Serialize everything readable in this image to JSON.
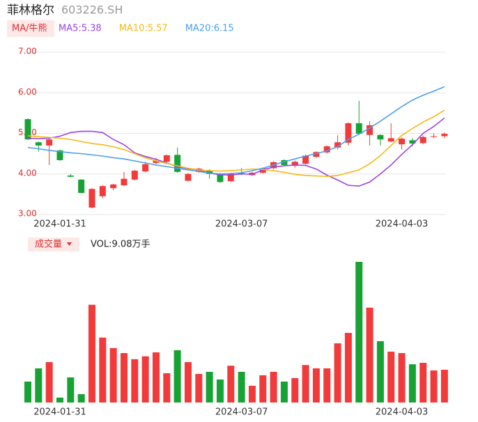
{
  "chart_data": [
    {
      "type": "candlestick",
      "title": "菲林格尔",
      "subtitle": "603226.SH",
      "mode_button": "MA/牛熊",
      "categories": [
        null,
        null,
        null,
        "2024-01-31",
        null,
        null,
        null,
        null,
        null,
        null,
        null,
        null,
        null,
        null,
        null,
        null,
        null,
        null,
        null,
        null,
        "2024-03-07",
        null,
        null,
        null,
        null,
        null,
        null,
        null,
        null,
        null,
        null,
        null,
        null,
        null,
        null,
        "2024-04-03",
        null,
        null,
        null,
        null
      ],
      "open": [
        5.35,
        4.78,
        4.7,
        4.58,
        3.96,
        3.86,
        3.17,
        3.45,
        3.65,
        3.72,
        3.86,
        4.06,
        4.27,
        4.3,
        4.47,
        3.83,
        4.05,
        4.08,
        3.99,
        3.82,
        4.02,
        3.97,
        4.03,
        4.14,
        4.34,
        4.2,
        4.25,
        4.42,
        4.53,
        4.65,
        4.77,
        5.25,
        4.96,
        4.96,
        4.8,
        4.73,
        4.83,
        4.76,
        4.92,
        4.93
      ],
      "high": [
        5.37,
        4.8,
        4.9,
        4.6,
        4.0,
        3.87,
        3.65,
        3.72,
        3.76,
        4.05,
        4.1,
        4.3,
        4.4,
        4.48,
        4.65,
        4.02,
        4.15,
        4.12,
        4.02,
        4.03,
        4.15,
        4.05,
        4.16,
        4.31,
        4.36,
        4.33,
        4.48,
        4.56,
        4.7,
        4.95,
        5.27,
        5.8,
        5.3,
        4.98,
        5.25,
        4.9,
        4.88,
        4.95,
        5.0,
        5.02
      ],
      "low": [
        4.84,
        4.55,
        4.22,
        4.32,
        3.92,
        3.52,
        3.15,
        3.4,
        3.6,
        3.7,
        3.84,
        4.04,
        4.24,
        4.28,
        4.03,
        3.82,
        4.03,
        3.88,
        3.78,
        3.8,
        3.97,
        3.95,
        4.01,
        4.12,
        4.2,
        4.15,
        4.23,
        4.4,
        4.5,
        4.6,
        4.7,
        4.97,
        4.7,
        4.7,
        4.78,
        4.6,
        4.68,
        4.73,
        4.88,
        4.88
      ],
      "close": [
        4.85,
        4.7,
        4.85,
        4.34,
        3.93,
        3.53,
        3.63,
        3.7,
        3.74,
        3.88,
        4.08,
        4.24,
        4.32,
        4.46,
        4.05,
        4.0,
        4.13,
        4.0,
        3.8,
        4.01,
        3.99,
        4.03,
        4.14,
        4.29,
        4.22,
        4.3,
        4.45,
        4.54,
        4.68,
        4.78,
        5.25,
        4.99,
        5.2,
        4.85,
        4.88,
        4.87,
        4.75,
        4.91,
        4.93,
        4.99
      ],
      "up_color": "#f23a3a",
      "down_color": "#17a234",
      "series": [
        {
          "name": "MA5:5.38",
          "color": "#9b45e0",
          "values": [
            4.88,
            4.87,
            4.88,
            4.93,
            5.02,
            5.05,
            5.05,
            5.02,
            4.85,
            4.72,
            4.52,
            4.43,
            4.36,
            4.27,
            4.18,
            4.13,
            4.1,
            4.02,
            3.98,
            3.97,
            4.0,
            3.99,
            4.1,
            4.17,
            4.2,
            4.22,
            4.21,
            4.12,
            3.97,
            3.85,
            3.72,
            3.7,
            3.8,
            4.0,
            4.22,
            4.48,
            4.72,
            5.0,
            5.17,
            5.38
          ]
        },
        {
          "name": "MA10:5.57",
          "color": "#f5b915",
          "values": [
            4.94,
            4.92,
            4.9,
            4.88,
            4.85,
            4.8,
            4.75,
            4.72,
            4.67,
            4.6,
            4.5,
            4.4,
            4.32,
            4.26,
            4.2,
            4.14,
            4.1,
            4.08,
            4.07,
            4.08,
            4.1,
            4.12,
            4.11,
            4.08,
            4.04,
            3.99,
            3.96,
            3.95,
            3.94,
            3.96,
            4.03,
            4.1,
            4.25,
            4.45,
            4.7,
            4.95,
            5.12,
            5.28,
            5.41,
            5.57
          ]
        },
        {
          "name": "MA20:6.15",
          "color": "#4a9ff0",
          "values": [
            4.65,
            4.62,
            4.58,
            4.55,
            4.52,
            4.5,
            4.47,
            4.44,
            4.4,
            4.37,
            4.32,
            4.27,
            4.22,
            4.18,
            4.14,
            4.1,
            4.06,
            4.02,
            4.0,
            4.01,
            4.03,
            4.08,
            4.14,
            4.22,
            4.3,
            4.37,
            4.44,
            4.5,
            4.57,
            4.67,
            4.85,
            4.98,
            5.13,
            5.3,
            5.48,
            5.66,
            5.82,
            5.94,
            6.04,
            6.15
          ]
        }
      ],
      "ylim": [
        3,
        7
      ],
      "yticks": [
        {
          "value": 7,
          "label": "7.00"
        },
        {
          "value": 6,
          "label": "6.00"
        },
        {
          "value": 5,
          "label": "5.00"
        },
        {
          "value": 4,
          "label": "4.00"
        },
        {
          "value": 3,
          "label": "3.00"
        }
      ],
      "grid": true
    },
    {
      "type": "bar",
      "title": "成交量",
      "subtitle": "VOL:9.08万手",
      "categories": [
        null,
        null,
        null,
        "2024-01-31",
        null,
        null,
        null,
        null,
        null,
        null,
        null,
        null,
        null,
        null,
        null,
        null,
        null,
        null,
        null,
        null,
        "2024-03-07",
        null,
        null,
        null,
        null,
        null,
        null,
        null,
        null,
        null,
        null,
        null,
        null,
        null,
        null,
        "2024-04-03",
        null,
        null,
        null,
        null
      ],
      "values": [
        5.8,
        9.47,
        11.2,
        1.35,
        6.96,
        2.32,
        27.1,
        18.0,
        15.1,
        13.7,
        12.0,
        12.8,
        13.9,
        8.12,
        14.5,
        11.2,
        7.92,
        8.5,
        6.38,
        10.2,
        8.5,
        4.64,
        7.54,
        8.5,
        5.8,
        6.76,
        10.4,
        9.47,
        9.47,
        16.4,
        19.3,
        39.0,
        26.3,
        17.0,
        14.1,
        13.7,
        10.6,
        11.0,
        8.89,
        9.08
      ],
      "ylim": [
        0,
        39.0
      ]
    }
  ]
}
